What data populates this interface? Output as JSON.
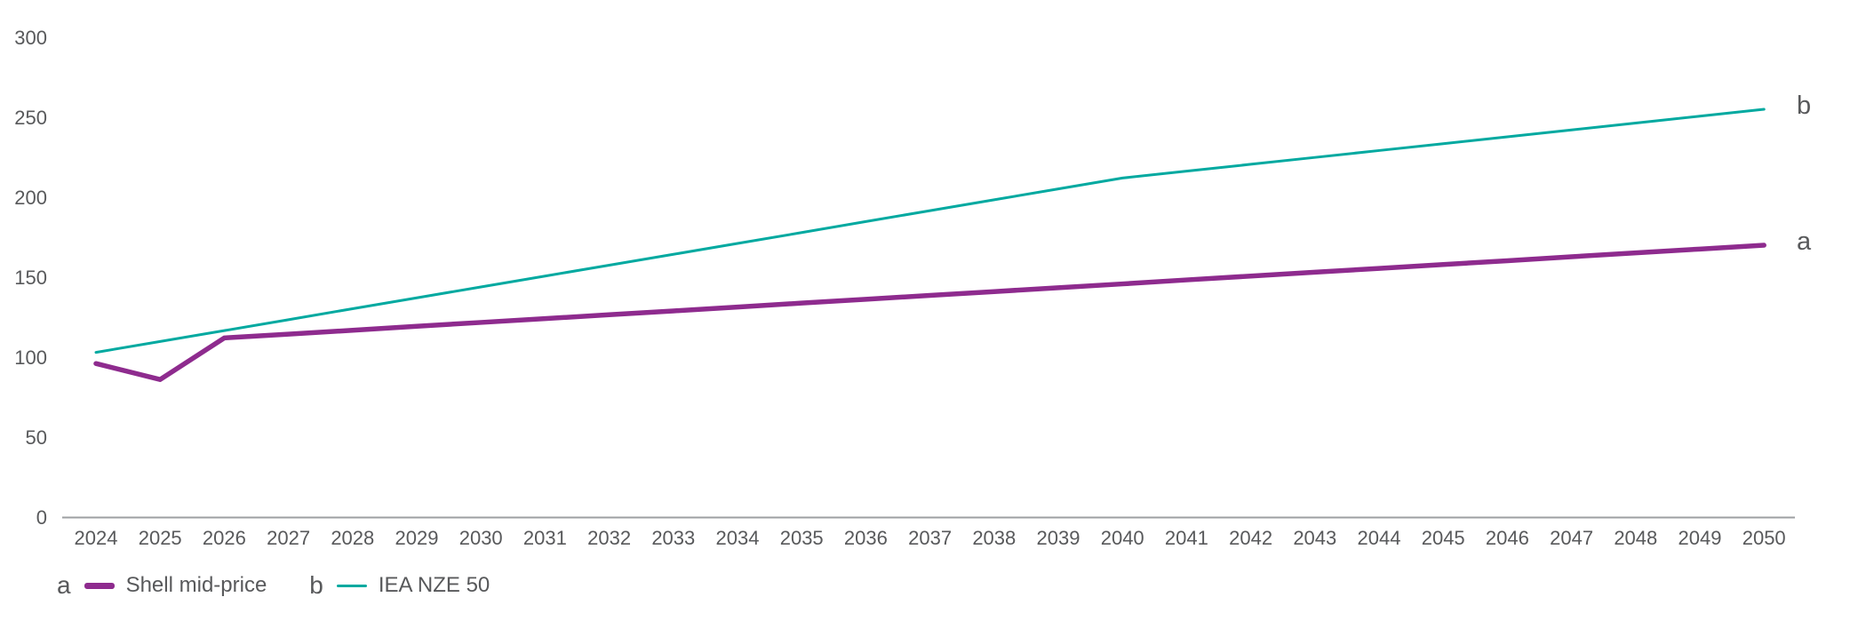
{
  "page": {
    "background": "#ffffff",
    "text_color": "#58595b",
    "axis_color": "#9d9fa2"
  },
  "chart_data": {
    "type": "line",
    "title": "",
    "xlabel": "",
    "ylabel": "",
    "ylim": [
      0,
      300
    ],
    "yticks": [
      0,
      50,
      100,
      150,
      200,
      250,
      300
    ],
    "grid": false,
    "legend_position": "bottom-left",
    "x": [
      2024,
      2025,
      2026,
      2027,
      2028,
      2029,
      2030,
      2031,
      2032,
      2033,
      2034,
      2035,
      2036,
      2037,
      2038,
      2039,
      2040,
      2041,
      2042,
      2043,
      2044,
      2045,
      2046,
      2047,
      2048,
      2049,
      2050
    ],
    "series": [
      {
        "id": "a",
        "name": "Shell mid-price",
        "color": "#8e2b8e",
        "weight": "thick",
        "values": [
          96,
          86,
          112,
          114.4,
          116.8,
          119.3,
          121.7,
          124.1,
          126.5,
          128.9,
          131.3,
          133.8,
          136.2,
          138.6,
          141,
          143.4,
          145.8,
          148.3,
          150.7,
          153.1,
          155.5,
          157.9,
          160.3,
          162.8,
          165.2,
          167.6,
          170
        ]
      },
      {
        "id": "b",
        "name": "IEA NZE 50",
        "color": "#00a9a0",
        "weight": "thin",
        "values": [
          103,
          109.8,
          116.6,
          123.4,
          130.3,
          137.1,
          143.9,
          150.7,
          157.5,
          164.3,
          171.1,
          177.9,
          184.8,
          191.6,
          198.4,
          205.2,
          212,
          216.3,
          220.6,
          224.9,
          229.2,
          233.5,
          237.8,
          242.1,
          246.4,
          250.7,
          255
        ]
      }
    ]
  }
}
